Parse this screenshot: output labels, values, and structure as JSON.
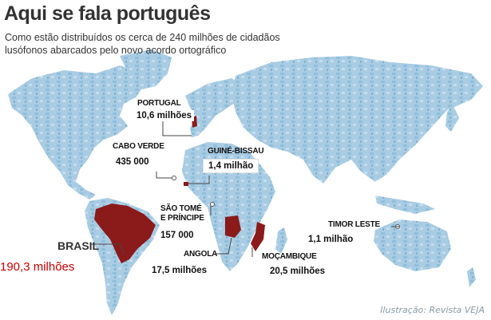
{
  "title": "Aqui se fala português",
  "subtitle": "Como estão distribuídos os cerca de 240 milhões de cidadãos lusófonos abarcados pelo novo acordo ortográfico",
  "credit": "Ilustração: Revista VEJA",
  "colors": {
    "land": "#a9cce3",
    "land_dark": "#7fb3d5",
    "highlight": "#8b1a1a",
    "highlight_label": "#cc0000",
    "text": "#111111"
  },
  "countries": {
    "portugal": {
      "name": "PORTUGAL",
      "value": "10,6 milhões"
    },
    "cabo_verde": {
      "name": "CABO VERDE",
      "value": "435 000"
    },
    "guine_bissau": {
      "name": "GUINÉ-BISSAU",
      "value": "1,4 milhão"
    },
    "sao_tome": {
      "name_line1": "SÃO TOMÉ",
      "name_line2": "E PRÍNCIPE",
      "value": "157 000"
    },
    "timor_leste": {
      "name": "TIMOR LESTE",
      "value": "1,1 milhão"
    },
    "brasil": {
      "name": "BRASIL",
      "value": "190,3 milhões"
    },
    "angola": {
      "name": "ANGOLA",
      "value": "17,5 milhões"
    },
    "mocambique": {
      "name": "MOÇAMBIQUE",
      "value": "20,5 milhões"
    }
  }
}
